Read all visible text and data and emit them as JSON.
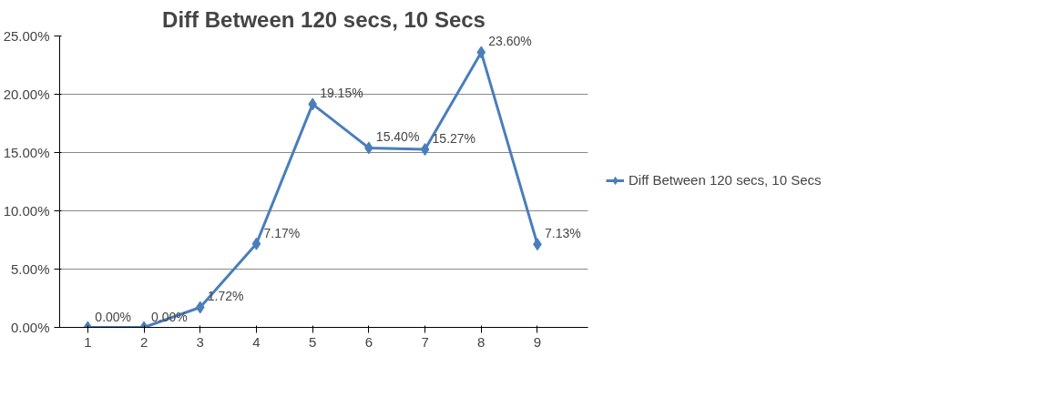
{
  "chart_data": {
    "type": "line",
    "title": "Diff Between 120 secs, 10 Secs",
    "categories": [
      "1",
      "2",
      "3",
      "4",
      "5",
      "6",
      "7",
      "8",
      "9"
    ],
    "series": [
      {
        "name": "Diff Between 120 secs, 10 Secs",
        "color": "#4a7ebb",
        "values": [
          0,
          0,
          1.72,
          7.17,
          19.15,
          15.4,
          15.27,
          23.6,
          7.13
        ],
        "value_labels": [
          "0.00%",
          "0.00%",
          "1.72%",
          "7.17%",
          "19.15%",
          "15.40%",
          "15.27%",
          "23.60%",
          "7.13%"
        ]
      }
    ],
    "ylim": [
      0,
      25
    ],
    "yticks": [
      {
        "value": 0,
        "label": "0.00%"
      },
      {
        "value": 5,
        "label": "5.00%"
      },
      {
        "value": 10,
        "label": "10.00%"
      },
      {
        "value": 15,
        "label": "15.00%"
      },
      {
        "value": 20,
        "label": "20.00%"
      },
      {
        "value": 25,
        "label": "25.00%"
      }
    ],
    "grid": "y",
    "legend": "right",
    "marker": "diamond",
    "line_style": "solid"
  }
}
